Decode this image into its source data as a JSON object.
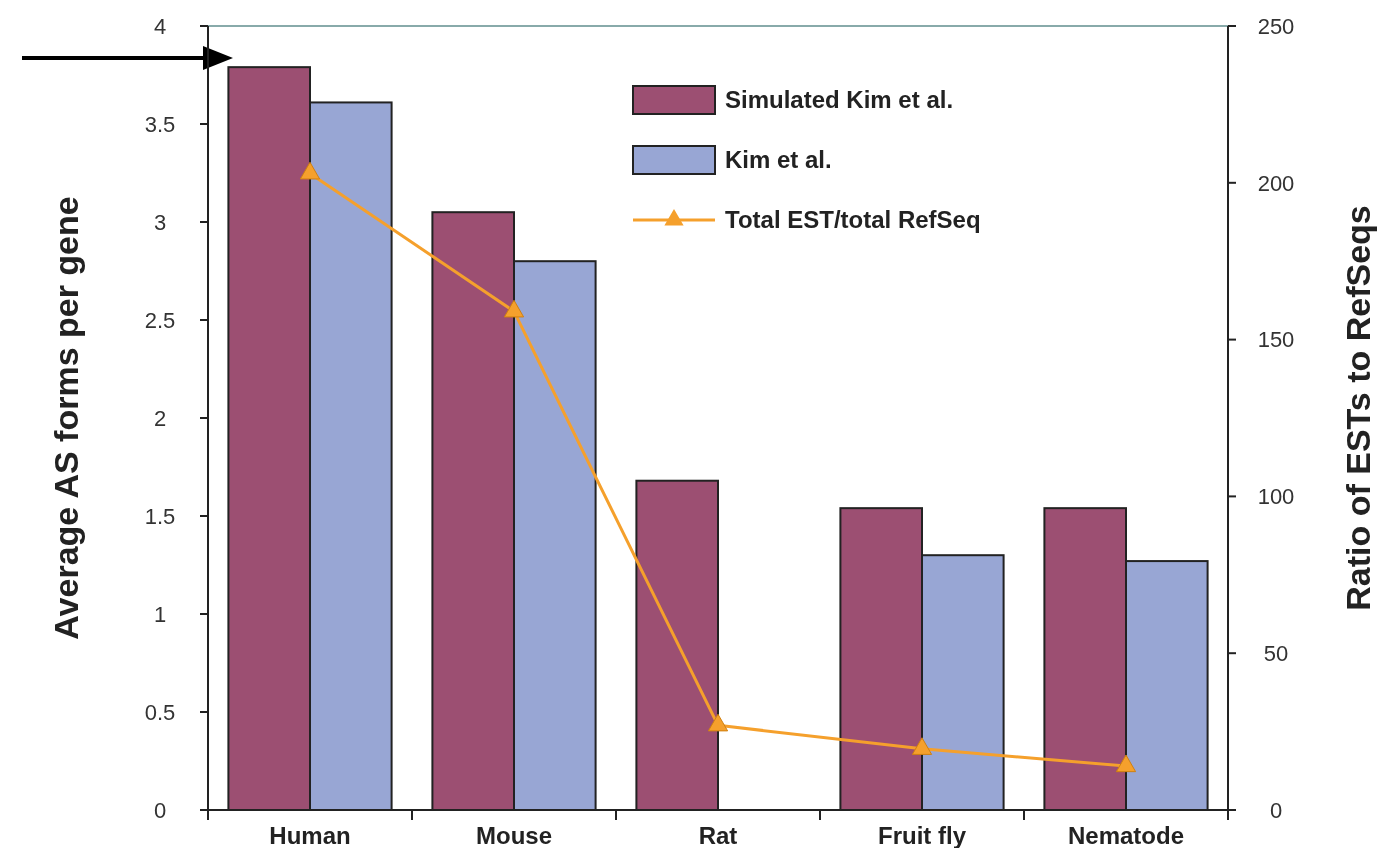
{
  "chart_data": {
    "type": "bar",
    "categories": [
      "Human",
      "Mouse",
      "Rat",
      "Fruit fly",
      "Nematode"
    ],
    "series": [
      {
        "name": "Simulated Kim et al.",
        "color": "#9c4f72",
        "values": [
          3.79,
          3.05,
          1.68,
          1.54,
          1.54
        ]
      },
      {
        "name": "Kim et al.",
        "color": "#98a6d4",
        "values": [
          3.61,
          2.8,
          null,
          1.3,
          1.27
        ]
      },
      {
        "name": "Total EST/total RefSeq",
        "type": "line",
        "axis": "y2",
        "color": "#f5a02c",
        "marker": "triangle",
        "values": [
          203,
          159,
          27,
          19.5,
          14
        ]
      }
    ],
    "ylabel": "Average AS forms per gene",
    "y2label": "Ratio of ESTs to RefSeqs",
    "ylim": [
      0,
      4
    ],
    "yticks": [
      0,
      0.5,
      1,
      1.5,
      2,
      2.5,
      3,
      3.5,
      4
    ],
    "y2lim": [
      0,
      250
    ],
    "y2ticks": [
      0,
      50,
      100,
      150,
      200,
      250
    ],
    "legend": "top right",
    "grid": false
  }
}
